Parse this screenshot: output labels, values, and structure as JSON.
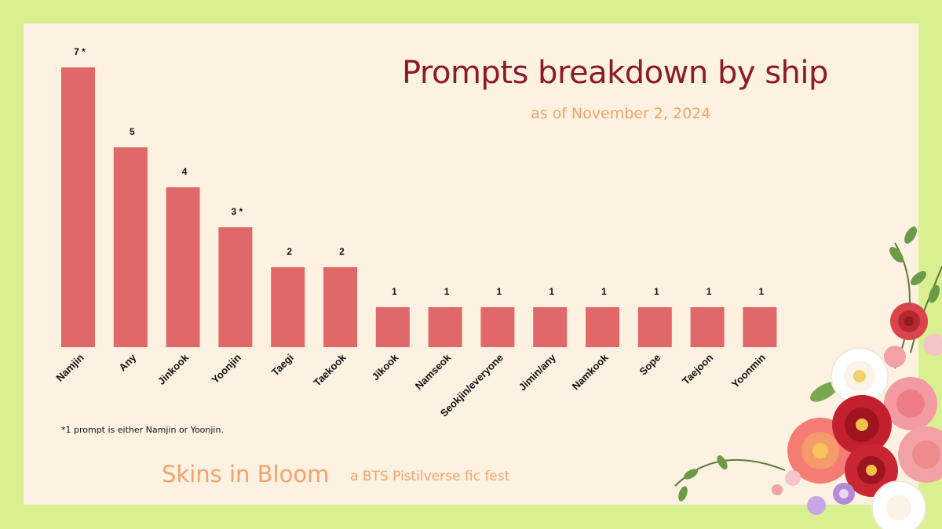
{
  "header": {
    "title": "Prompts breakdown by ship",
    "subtitle": "as of November 2, 2024"
  },
  "footer": {
    "footnote": "*1 prompt is either Namjin or Yoonjin.",
    "brand": "Skins in Bloom",
    "tagline": "a BTS Pistilverse fic fest"
  },
  "chart_data": {
    "type": "bar",
    "title": "Prompts breakdown by ship",
    "subtitle": "as of November 2, 2024",
    "categories": [
      "Namjin",
      "Any",
      "Jinkook",
      "Yoonjin",
      "Taegi",
      "Taekook",
      "Jikook",
      "Namseok",
      "Seokjin/everyone",
      "Jimin/any",
      "Namkook",
      "Sope",
      "Taejoon",
      "Yoonmin"
    ],
    "values": [
      7,
      5,
      4,
      3,
      2,
      2,
      1,
      1,
      1,
      1,
      1,
      1,
      1,
      1
    ],
    "value_labels": [
      "7 *",
      "5",
      "4",
      "3 *",
      "2",
      "2",
      "1",
      "1",
      "1",
      "1",
      "1",
      "1",
      "1",
      "1"
    ],
    "xlabel": "",
    "ylabel": "",
    "ylim": [
      0,
      7
    ],
    "grid": false,
    "legend": "none",
    "bar_color": "#e06868"
  }
}
